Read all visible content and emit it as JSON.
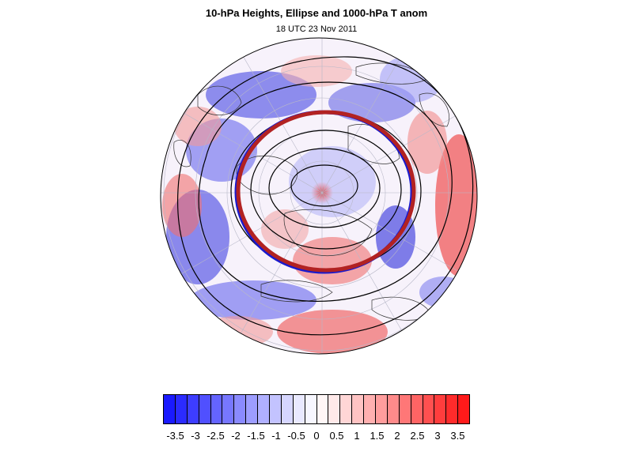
{
  "title": "10-hPa Heights, Ellipse and 1000-hPa T anom",
  "subtitle": "18 UTC 23 Nov 2011",
  "map": {
    "projection": "polar stereographic, north pole",
    "fill_field": "1000-hPa T anom",
    "contour_field": "10-hPa Heights",
    "ellipse_colors": [
      "#1a1acc",
      "#b22222"
    ],
    "contour_color": "#000000"
  },
  "colorbar": {
    "colors": [
      "#1a1aff",
      "#2b2bff",
      "#3d3dff",
      "#5050ff",
      "#6464ff",
      "#7777ff",
      "#8a8aff",
      "#9d9dff",
      "#b0b0ff",
      "#c3c3ff",
      "#d6d6ff",
      "#e9e9ff",
      "#f7f7ff",
      "#fff7f7",
      "#ffe9e9",
      "#ffd6d6",
      "#ffc3c3",
      "#ffb0b0",
      "#ff9d9d",
      "#ff8a8a",
      "#ff7777",
      "#ff6464",
      "#ff5050",
      "#ff3d3d",
      "#ff2b2b",
      "#ff1a1a"
    ],
    "labels": [
      "-3.5",
      "-3",
      "-2.5",
      "-2",
      "-1.5",
      "-1",
      "-0.5",
      "0",
      "0.5",
      "1",
      "1.5",
      "2",
      "2.5",
      "3",
      "3.5"
    ],
    "label_fraction_positions": [
      0.0385,
      0.1154,
      0.1923,
      0.2692,
      0.3462,
      0.4231,
      0.5,
      0.5769,
      0.6538,
      0.7308,
      0.7692,
      0.8462,
      0.8846,
      0.9231,
      0.9615
    ]
  }
}
